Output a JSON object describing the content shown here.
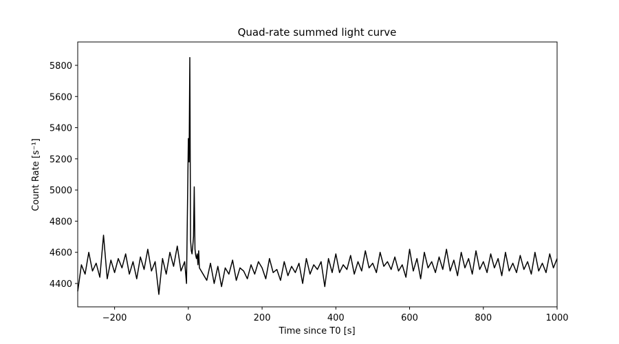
{
  "chart_data": {
    "type": "line",
    "title": "Quad-rate summed light curve",
    "xlabel": "Time since T0 [s]",
    "ylabel": "Count Rate [s⁻¹]",
    "xlim": [
      -300,
      1000
    ],
    "ylim": [
      4250,
      5950
    ],
    "x_ticks": [
      -200,
      0,
      200,
      400,
      600,
      800,
      1000
    ],
    "x_tick_labels": [
      "−200",
      "0",
      "200",
      "400",
      "600",
      "800",
      "1000"
    ],
    "y_ticks": [
      4400,
      4600,
      4800,
      5000,
      5200,
      5400,
      5600,
      5800
    ],
    "y_tick_labels": [
      "4400",
      "4600",
      "4800",
      "5000",
      "5200",
      "5400",
      "5600",
      "5800"
    ],
    "grid": false,
    "line_color": "#000000",
    "series": [
      {
        "x": [
          -300,
          -290,
          -280,
          -270,
          -260,
          -250,
          -240,
          -230,
          -220,
          -210,
          -200,
          -190,
          -180,
          -170,
          -160,
          -150,
          -140,
          -130,
          -120,
          -110,
          -100,
          -90,
          -80,
          -70,
          -60,
          -50,
          -40,
          -30,
          -20,
          -10,
          -5,
          0,
          2,
          4,
          6,
          8,
          10,
          12,
          14,
          16,
          18,
          20,
          22,
          24,
          26,
          28,
          30,
          40,
          50,
          60,
          70,
          80,
          90,
          100,
          110,
          120,
          130,
          140,
          150,
          160,
          170,
          180,
          190,
          200,
          210,
          220,
          230,
          240,
          250,
          260,
          270,
          280,
          290,
          300,
          310,
          320,
          330,
          340,
          350,
          360,
          370,
          380,
          390,
          400,
          410,
          420,
          430,
          440,
          450,
          460,
          470,
          480,
          490,
          500,
          510,
          520,
          530,
          540,
          550,
          560,
          570,
          580,
          590,
          600,
          610,
          620,
          630,
          640,
          650,
          660,
          670,
          680,
          690,
          700,
          710,
          720,
          730,
          740,
          750,
          760,
          770,
          780,
          790,
          800,
          810,
          820,
          830,
          840,
          850,
          860,
          870,
          880,
          890,
          900,
          910,
          920,
          930,
          940,
          950,
          960,
          970,
          980,
          990,
          1000
        ],
        "values": [
          4350,
          4520,
          4460,
          4600,
          4480,
          4530,
          4440,
          4710,
          4430,
          4550,
          4470,
          4560,
          4500,
          4590,
          4460,
          4540,
          4430,
          4570,
          4490,
          4620,
          4480,
          4540,
          4330,
          4560,
          4460,
          4600,
          4510,
          4640,
          4480,
          4540,
          4400,
          5330,
          5180,
          5850,
          4680,
          4610,
          4590,
          4640,
          4700,
          5020,
          4620,
          4580,
          4560,
          4590,
          4520,
          4610,
          4500,
          4460,
          4420,
          4530,
          4400,
          4510,
          4380,
          4500,
          4460,
          4550,
          4420,
          4500,
          4480,
          4430,
          4520,
          4460,
          4540,
          4500,
          4430,
          4560,
          4470,
          4490,
          4420,
          4540,
          4450,
          4510,
          4470,
          4530,
          4400,
          4560,
          4460,
          4520,
          4490,
          4540,
          4380,
          4560,
          4470,
          4590,
          4470,
          4520,
          4490,
          4580,
          4460,
          4540,
          4480,
          4610,
          4500,
          4530,
          4470,
          4600,
          4510,
          4540,
          4490,
          4570,
          4480,
          4520,
          4440,
          4620,
          4480,
          4560,
          4430,
          4600,
          4500,
          4540,
          4470,
          4570,
          4490,
          4620,
          4480,
          4550,
          4450,
          4600,
          4500,
          4560,
          4460,
          4610,
          4490,
          4540,
          4470,
          4590,
          4500,
          4560,
          4450,
          4600,
          4480,
          4530,
          4470,
          4580,
          4490,
          4540,
          4460,
          4600,
          4480,
          4530,
          4470,
          4590,
          4500,
          4560
        ]
      }
    ]
  }
}
